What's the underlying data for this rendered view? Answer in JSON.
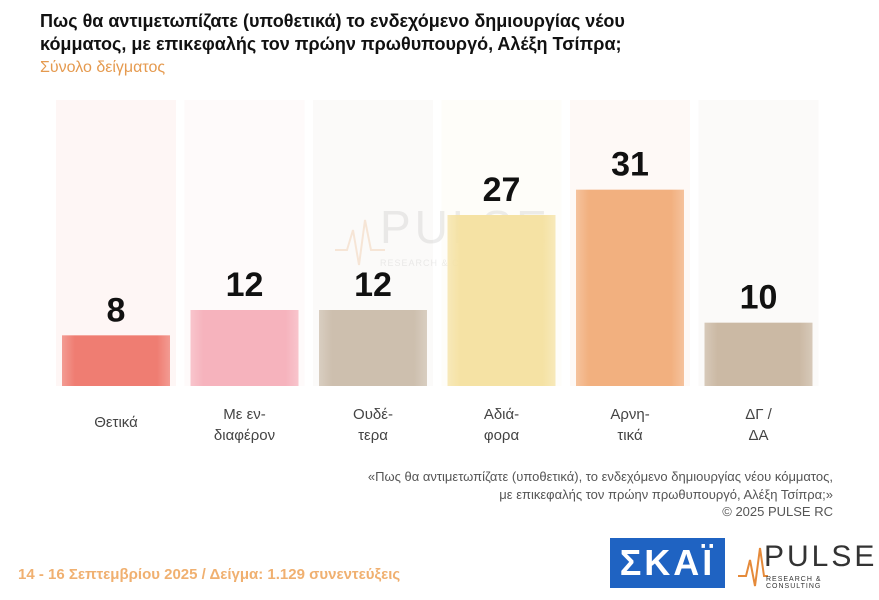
{
  "title": "Πως θα αντιμετωπίζατε (υποθετικά) το ενδεχόμενο δημιουργίας νέου κόμματος, με επικεφαλής τον πρώην πρωθυπουργό, Αλέξη Τσίπρα;",
  "subtitle": "Σύνολο δείγματος",
  "chart_data": {
    "type": "bar",
    "categories": [
      [
        "Θετικά"
      ],
      [
        "Με εν-",
        "διαφέρον"
      ],
      [
        "Ουδέ-",
        "τερα"
      ],
      [
        "Αδιά-",
        "φορα"
      ],
      [
        "Αρνη-",
        "τικά"
      ],
      [
        "ΔΓ /",
        "ΔΑ"
      ]
    ],
    "values": [
      8,
      12,
      12,
      27,
      31,
      10
    ],
    "colors": [
      "#ef7d72",
      "#f6b3bd",
      "#cdbfae",
      "#f5e2a4",
      "#f2b07f",
      "#cbb9a4"
    ],
    "ylim": [
      0,
      45
    ]
  },
  "watermark": {
    "name": "PULSE",
    "tagline": "RESEARCH & CONSULTING"
  },
  "footnote": {
    "line1": "«Πως θα αντιμετωπίζατε (υποθετικά), το ενδεχόμενο δημιουργίας νέου κόμματος,",
    "line2": "με επικεφαλής τον πρώην πρωθυπουργό, Αλέξη Τσίπρα;»",
    "copyright": "©  2025  PULSE RC"
  },
  "footer": "14 - 16 Σεπτεμβρίου 2025  /  Δείγμα:  1.129 συνεντεύξεις",
  "logos": {
    "skai": "ΣΚΑΪ",
    "pulse": "PULSE",
    "pulse_tag": "RESEARCH & CONSULTING"
  }
}
